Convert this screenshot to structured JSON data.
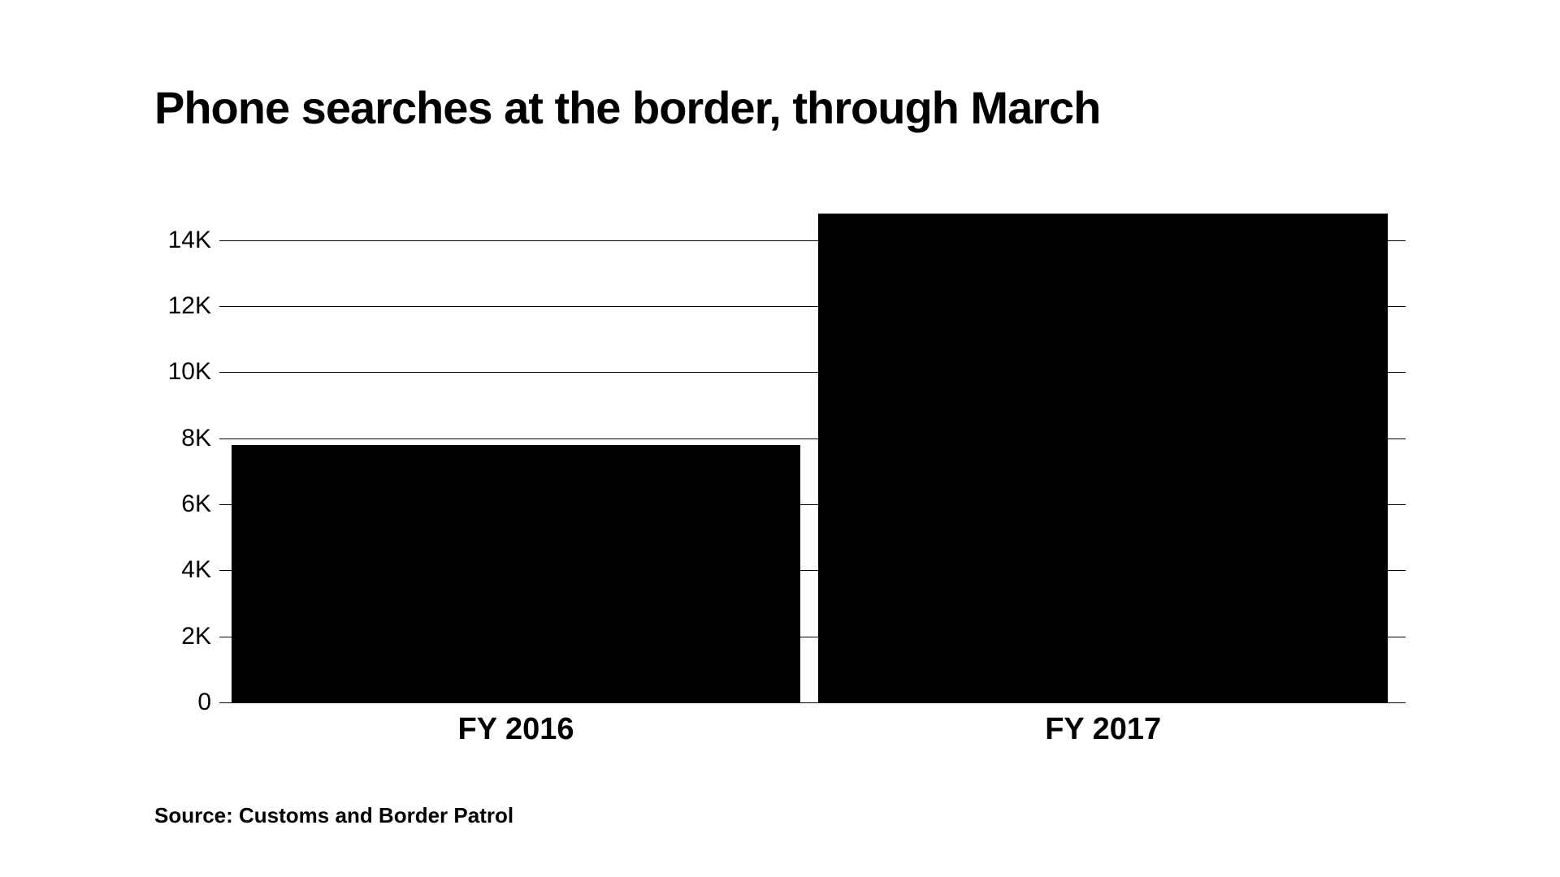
{
  "chart": {
    "type": "bar",
    "title": "Phone searches at the border, through March",
    "title_fontsize": 56,
    "title_fontweight": 900,
    "title_color": "#000000",
    "background_color": "#ffffff",
    "plot_width_pct": 100,
    "categories": [
      "FY 2016",
      "FY 2017"
    ],
    "values": [
      7800,
      14800
    ],
    "bar_colors": [
      "#000000",
      "#000000"
    ],
    "bar_positions_pct": [
      1,
      50.5
    ],
    "bar_width_pct": 48,
    "ylim": [
      0,
      15000
    ],
    "y_ticks": [
      {
        "value": 0,
        "label": "0"
      },
      {
        "value": 2000,
        "label": "2K"
      },
      {
        "value": 4000,
        "label": "4K"
      },
      {
        "value": 6000,
        "label": "6K"
      },
      {
        "value": 8000,
        "label": "8K"
      },
      {
        "value": 10000,
        "label": "10K"
      },
      {
        "value": 12000,
        "label": "12K"
      },
      {
        "value": 14000,
        "label": "14K"
      }
    ],
    "y_label_fontsize": 30,
    "y_label_color": "#000000",
    "x_label_fontsize": 38,
    "x_label_fontweight": 900,
    "x_label_color": "#000000",
    "grid_color": "#000000",
    "grid_width": 1,
    "source": "Source: Customs and Border Patrol",
    "source_fontsize": 26,
    "source_fontweight": 900,
    "source_color": "#000000"
  }
}
